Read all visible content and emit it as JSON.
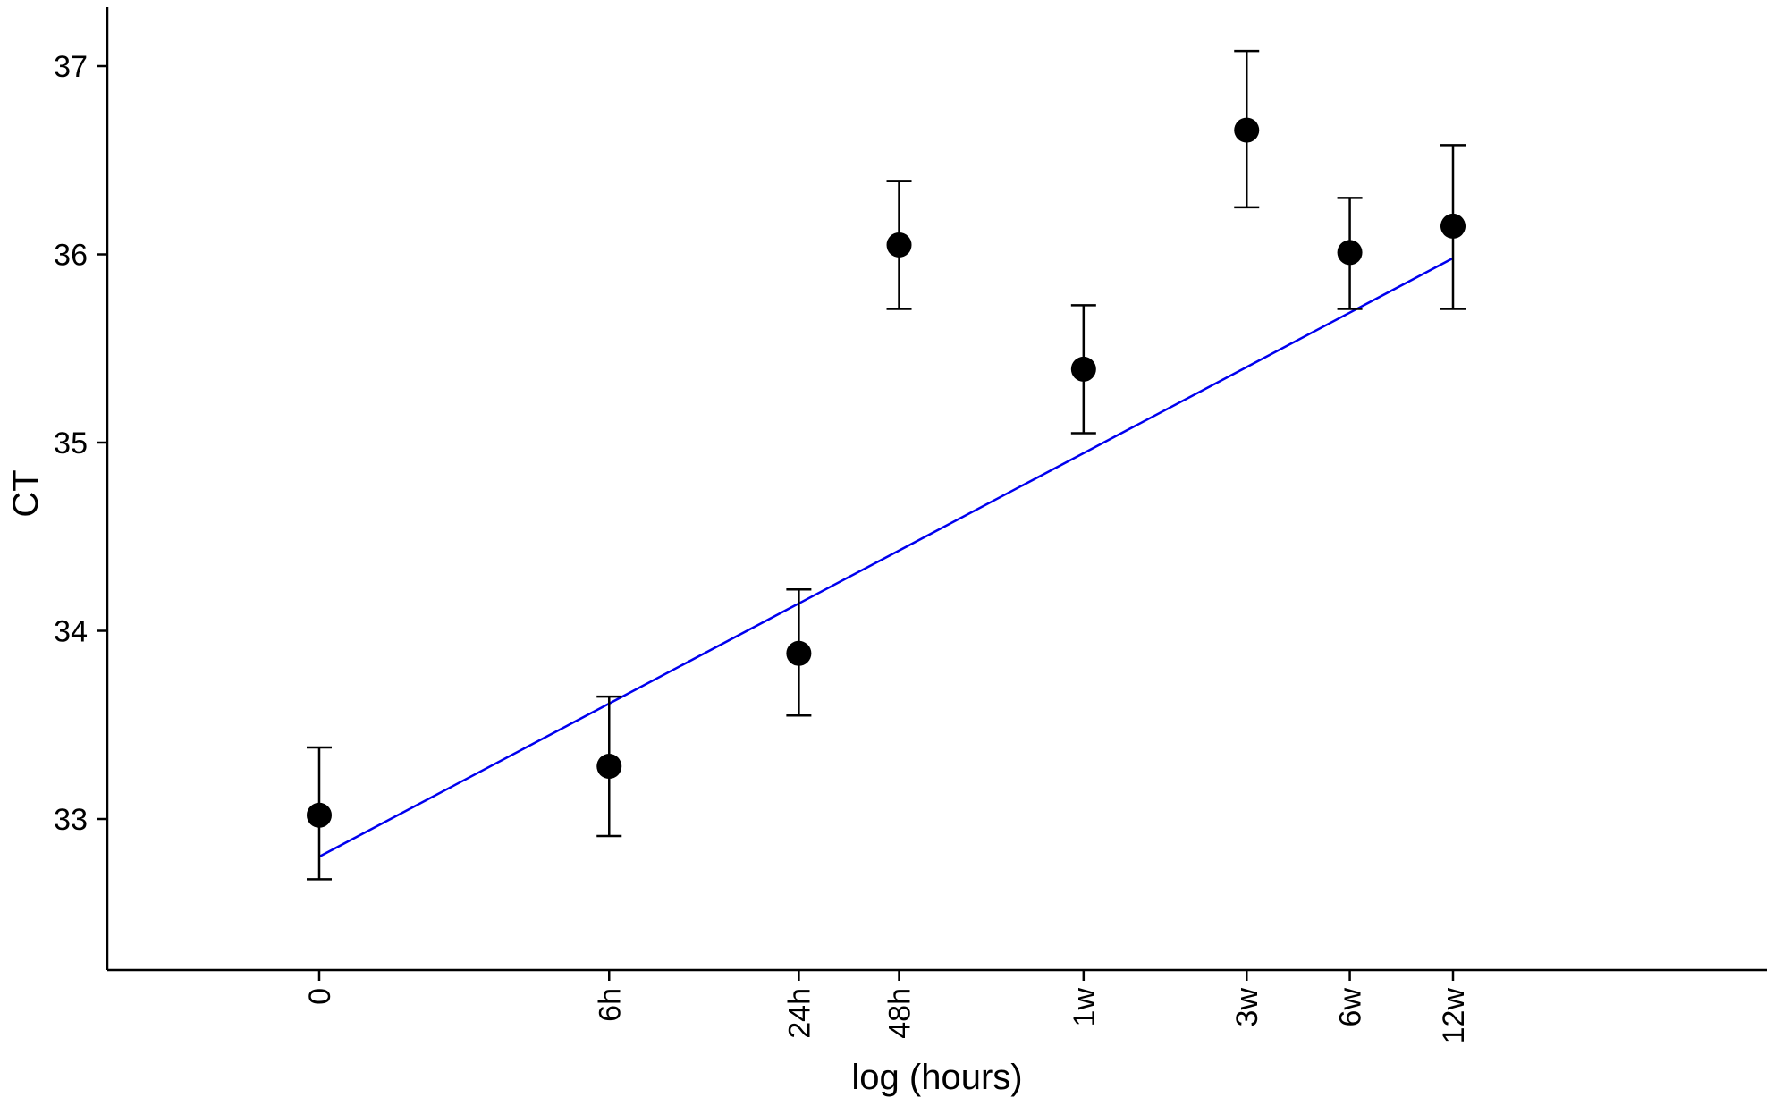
{
  "chart_data": {
    "type": "scatter",
    "xlabel": "log (hours)",
    "ylabel": "CT",
    "x_scale": "log",
    "x_unit": "hours",
    "ylim": [
      32.2,
      37.4
    ],
    "y_ticks": [
      33,
      34,
      35,
      36,
      37
    ],
    "x_ticks": [
      {
        "label": "0",
        "hours": 0
      },
      {
        "label": "6h",
        "hours": 6
      },
      {
        "label": "24h",
        "hours": 24
      },
      {
        "label": "48h",
        "hours": 48
      },
      {
        "label": "1w",
        "hours": 168
      },
      {
        "label": "3w",
        "hours": 504
      },
      {
        "label": "6w",
        "hours": 1008
      },
      {
        "label": "12w",
        "hours": 2016
      }
    ],
    "points": [
      {
        "x": "0",
        "y": 33.02,
        "ymin": 32.68,
        "ymax": 33.38
      },
      {
        "x": "6h",
        "y": 33.28,
        "ymin": 32.91,
        "ymax": 33.65
      },
      {
        "x": "24h",
        "y": 33.88,
        "ymin": 33.55,
        "ymax": 34.22
      },
      {
        "x": "48h",
        "y": 36.05,
        "ymin": 35.71,
        "ymax": 36.39
      },
      {
        "x": "1w",
        "y": 35.39,
        "ymin": 35.05,
        "ymax": 35.73
      },
      {
        "x": "3w",
        "y": 36.66,
        "ymin": 36.25,
        "ymax": 37.08
      },
      {
        "x": "6w",
        "y": 36.01,
        "ymin": 35.71,
        "ymax": 36.3
      },
      {
        "x": "12w",
        "y": 36.15,
        "ymin": 35.71,
        "ymax": 36.58
      }
    ],
    "fit_line": {
      "start": {
        "x": "0",
        "y": 32.8
      },
      "end": {
        "x": "12w",
        "y": 35.98
      }
    },
    "colors": {
      "points": "#000000",
      "error_bars": "#000000",
      "fit_line": "#0000ee",
      "axes": "#000000"
    },
    "grid": false,
    "legend": "none"
  }
}
